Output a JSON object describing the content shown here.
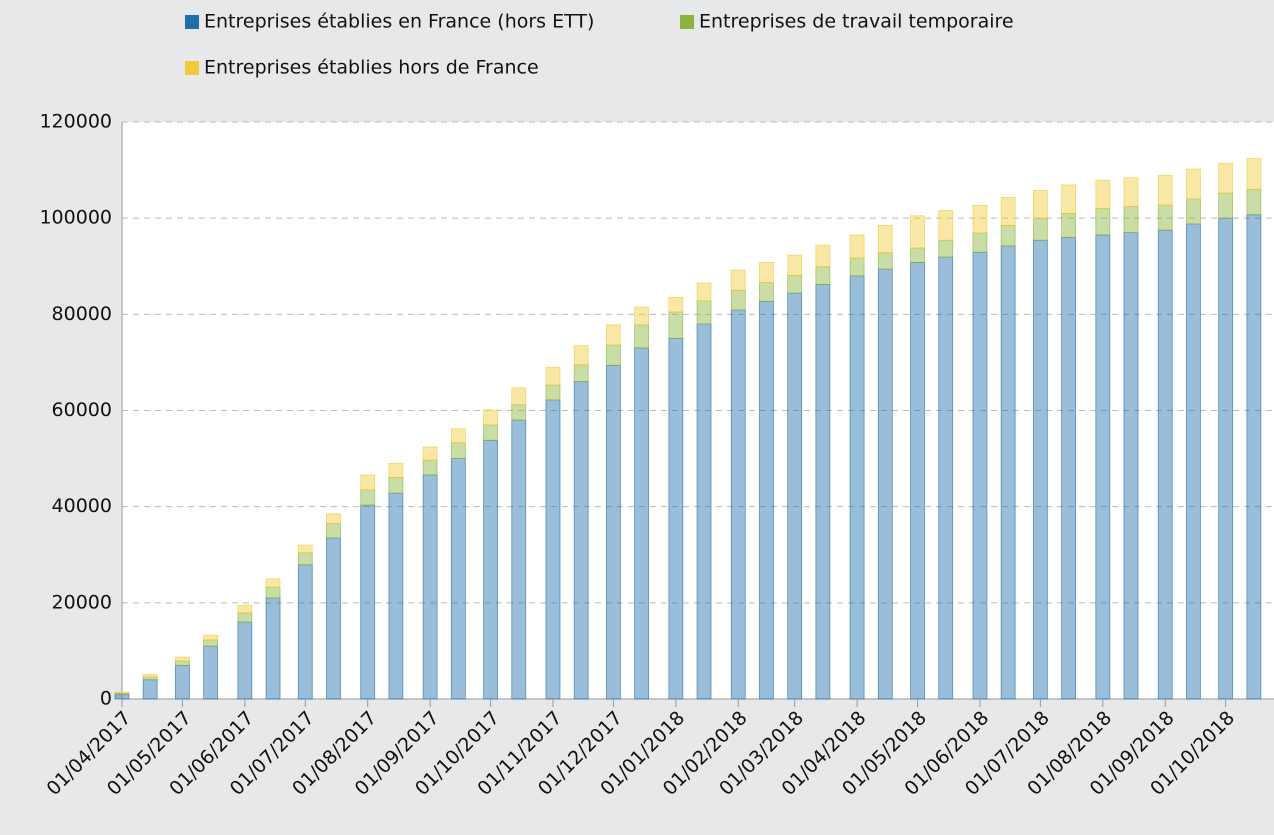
{
  "chart_data": {
    "type": "bar",
    "stacked": true,
    "x": [
      "2017-04-01",
      "2017-04-15",
      "2017-05-01",
      "2017-05-15",
      "2017-06-01",
      "2017-06-15",
      "2017-07-01",
      "2017-07-15",
      "2017-08-01",
      "2017-08-15",
      "2017-09-01",
      "2017-09-15",
      "2017-10-01",
      "2017-10-15",
      "2017-11-01",
      "2017-11-15",
      "2017-12-01",
      "2017-12-15",
      "2018-01-01",
      "2018-01-15",
      "2018-02-01",
      "2018-02-15",
      "2018-03-01",
      "2018-03-15",
      "2018-04-01",
      "2018-04-15",
      "2018-05-01",
      "2018-05-15",
      "2018-06-01",
      "2018-06-15",
      "2018-07-01",
      "2018-07-15",
      "2018-08-01",
      "2018-08-15",
      "2018-09-01",
      "2018-09-15",
      "2018-10-01",
      "2018-10-15"
    ],
    "series": [
      {
        "name": "Entreprises établies en France (hors ETT)",
        "color": "#1f6fad",
        "values": [
          1000,
          4000,
          7000,
          11000,
          16000,
          21000,
          27900,
          33500,
          40300,
          42800,
          46600,
          50000,
          53800,
          58000,
          62200,
          66000,
          69400,
          73000,
          75000,
          78000,
          80900,
          82700,
          84400,
          86200,
          88000,
          89400,
          90800,
          91900,
          92900,
          94200,
          95400,
          96000,
          96500,
          97000,
          97500,
          98800,
          100000,
          100700
        ]
      },
      {
        "name": "Entreprises de travail temporaire",
        "color": "#8ab43c",
        "values": [
          200,
          600,
          900,
          1300,
          1900,
          2300,
          2500,
          3000,
          3200,
          3300,
          3100,
          3300,
          3200,
          3200,
          3100,
          3500,
          4200,
          4800,
          5500,
          4800,
          4100,
          3900,
          3700,
          3700,
          3700,
          3400,
          3000,
          3500,
          4000,
          4300,
          4600,
          5000,
          5500,
          5400,
          5200,
          5200,
          5200,
          5300
        ]
      },
      {
        "name": "Entreprises établies hors de France",
        "color": "#f2c93a",
        "values": [
          200,
          500,
          800,
          1000,
          1600,
          1700,
          1600,
          2000,
          3100,
          2900,
          2700,
          2900,
          3100,
          3500,
          3700,
          4000,
          4200,
          3700,
          3000,
          3700,
          4200,
          4200,
          4200,
          4500,
          4800,
          5700,
          6700,
          6200,
          5800,
          5800,
          5800,
          5900,
          5900,
          6000,
          6200,
          6200,
          6200,
          6400
        ]
      }
    ],
    "xlim": [
      "2017-04-01",
      "2018-10-25"
    ],
    "xticks": [
      {
        "value": "2017-04-01",
        "label": "01/04/2017"
      },
      {
        "value": "2017-05-01",
        "label": "01/05/2017"
      },
      {
        "value": "2017-06-01",
        "label": "01/06/2017"
      },
      {
        "value": "2017-07-01",
        "label": "01/07/2017"
      },
      {
        "value": "2017-08-01",
        "label": "01/08/2017"
      },
      {
        "value": "2017-09-01",
        "label": "01/09/2017"
      },
      {
        "value": "2017-10-01",
        "label": "01/10/2017"
      },
      {
        "value": "2017-11-01",
        "label": "01/11/2017"
      },
      {
        "value": "2017-12-01",
        "label": "01/12/2017"
      },
      {
        "value": "2018-01-01",
        "label": "01/01/2018"
      },
      {
        "value": "2018-02-01",
        "label": "01/02/2018"
      },
      {
        "value": "2018-03-01",
        "label": "01/03/2018"
      },
      {
        "value": "2018-04-01",
        "label": "01/04/2018"
      },
      {
        "value": "2018-05-01",
        "label": "01/05/2018"
      },
      {
        "value": "2018-06-01",
        "label": "01/06/2018"
      },
      {
        "value": "2018-07-01",
        "label": "01/07/2018"
      },
      {
        "value": "2018-08-01",
        "label": "01/08/2018"
      },
      {
        "value": "2018-09-01",
        "label": "01/09/2018"
      },
      {
        "value": "2018-10-01",
        "label": "01/10/2018"
      }
    ],
    "ylim": [
      0,
      120000
    ],
    "yticks": [
      0,
      20000,
      40000,
      60000,
      80000,
      100000,
      120000
    ],
    "grid": true,
    "legend": "top"
  }
}
